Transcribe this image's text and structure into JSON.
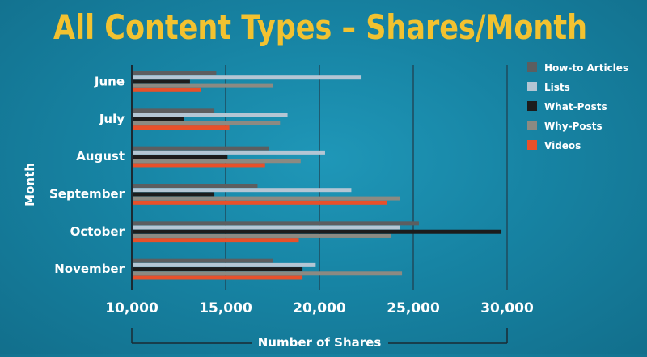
{
  "chart_data": {
    "type": "bar",
    "orientation": "horizontal",
    "title": "All Content Types – Shares/Month",
    "xlabel": "Number of Shares",
    "ylabel": "Month",
    "categories": [
      "June",
      "July",
      "August",
      "September",
      "October",
      "November"
    ],
    "xlim": [
      10000,
      30000
    ],
    "xticks": [
      10000,
      15000,
      20000,
      25000,
      30000
    ],
    "xtick_labels": [
      "10,000",
      "15,000",
      "20,000",
      "25,000",
      "30,000"
    ],
    "grid": "vertical",
    "legend_position": "right",
    "series": [
      {
        "name": "How-to Articles",
        "color": "#5c5e60",
        "values": [
          14500,
          14400,
          17300,
          16700,
          25300,
          17500
        ]
      },
      {
        "name": "Lists",
        "color": "#b4c6d4",
        "values": [
          22200,
          18300,
          20300,
          21700,
          24300,
          19800
        ]
      },
      {
        "name": "What-Posts",
        "color": "#1c1c1c",
        "values": [
          13100,
          12800,
          15100,
          14400,
          29700,
          19100
        ]
      },
      {
        "name": "Why-Posts",
        "color": "#8c8a82",
        "values": [
          17500,
          17900,
          19000,
          24300,
          23800,
          24400
        ]
      },
      {
        "name": "Videos",
        "color": "#e8502a",
        "values": [
          13700,
          15200,
          17100,
          23600,
          18900,
          19100
        ]
      }
    ],
    "colors": {
      "title": "#f2c230",
      "text": "#ffffff",
      "axis": "#1a2a33",
      "grid": "#1f4a5c"
    }
  }
}
